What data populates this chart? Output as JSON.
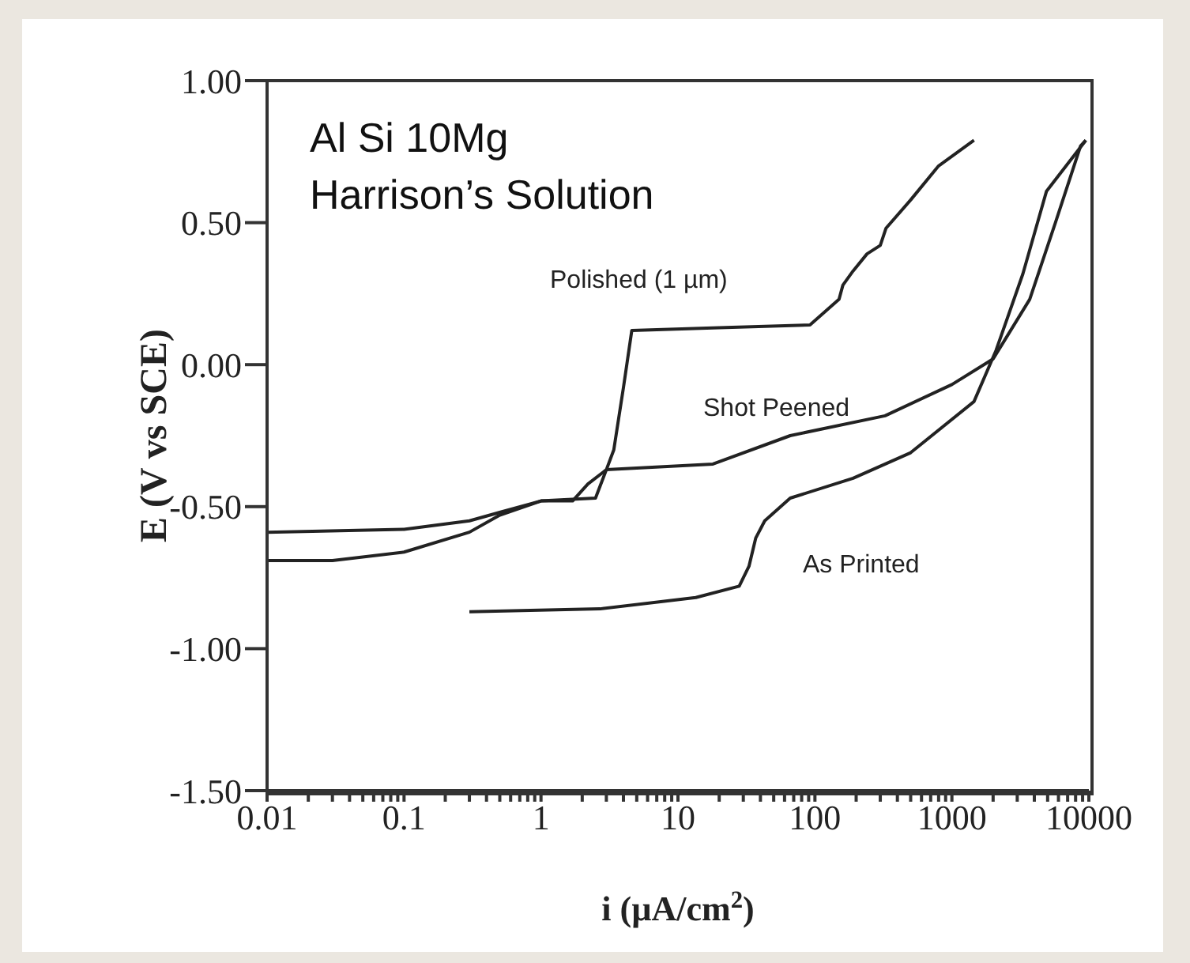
{
  "chart_data": {
    "type": "line",
    "xlabel": "i (µA/cm$^{2}$)",
    "ylabel": "E (V vs SCE)",
    "log": "x",
    "grid": false,
    "legend": false,
    "marker": "none",
    "line_style": "solid",
    "annotations": [
      "Al Si 10Mg",
      "Harrison’s Solution"
    ],
    "xlim": [
      0.01,
      10000
    ],
    "xticks": [
      0.01,
      {
        "value": 0.02,
        "label": null
      },
      {
        "value": 0.03,
        "label": null
      },
      {
        "value": 0.04,
        "label": null
      },
      {
        "value": 0.05,
        "label": null
      },
      {
        "value": 0.06,
        "label": null
      },
      {
        "value": 0.07,
        "label": null
      },
      {
        "value": 0.08,
        "label": null
      },
      {
        "value": 0.09,
        "label": null
      },
      0.1,
      {
        "value": 0.2,
        "label": null
      },
      {
        "value": 0.3,
        "label": null
      },
      {
        "value": 0.4,
        "label": null
      },
      {
        "value": 0.5,
        "label": null
      },
      {
        "value": 0.6,
        "label": null
      },
      {
        "value": 0.7,
        "label": null
      },
      {
        "value": 0.8,
        "label": null
      },
      {
        "value": 0.9,
        "label": null
      },
      1,
      {
        "value": 2,
        "label": null
      },
      {
        "value": 3,
        "label": null
      },
      {
        "value": 4,
        "label": null
      },
      {
        "value": 5,
        "label": null
      },
      {
        "value": 6,
        "label": null
      },
      {
        "value": 7,
        "label": null
      },
      {
        "value": 8,
        "label": null
      },
      {
        "value": 9,
        "label": null
      },
      10,
      {
        "value": 20,
        "label": null
      },
      {
        "value": 30,
        "label": null
      },
      {
        "value": 40,
        "label": null
      },
      {
        "value": 50,
        "label": null
      },
      {
        "value": 60,
        "label": null
      },
      {
        "value": 70,
        "label": null
      },
      {
        "value": 80,
        "label": null
      },
      {
        "value": 90,
        "label": null
      },
      100,
      {
        "value": 200,
        "label": null
      },
      {
        "value": 300,
        "label": null
      },
      {
        "value": 400,
        "label": null
      },
      {
        "value": 500,
        "label": null
      },
      {
        "value": 600,
        "label": null
      },
      {
        "value": 700,
        "label": null
      },
      {
        "value": 800,
        "label": null
      },
      {
        "value": 900,
        "label": null
      },
      1000,
      {
        "value": 2000,
        "label": null
      },
      {
        "value": 3000,
        "label": null
      },
      {
        "value": 4000,
        "label": null
      },
      {
        "value": 5000,
        "label": null
      },
      {
        "value": 6000,
        "label": null
      },
      {
        "value": 7000,
        "label": null
      },
      {
        "value": 8000,
        "label": null
      },
      {
        "value": 9000,
        "label": null
      },
      10000
    ],
    "ylim": [
      -1.5,
      1.0
    ],
    "yticks": [
      {
        "value": -1.5,
        "label": "-1.50"
      },
      {
        "value": -1.0,
        "label": "-1.00"
      },
      {
        "value": -0.5,
        "label": "-0.50"
      },
      {
        "value": 0,
        "label": "0.00"
      },
      {
        "value": 0.5,
        "label": "0.50"
      },
      {
        "value": 1.0,
        "label": "1.00"
      }
    ],
    "series": [
      {
        "name": "Polished (1 µm)",
        "color": "#222222",
        "x": [
          0.01,
          0.03,
          0.1,
          0.3,
          0.5,
          1,
          1.7,
          2.2,
          3,
          3.4,
          4,
          4.6,
          20,
          92,
          150,
          160,
          190,
          240,
          300,
          330,
          500,
          800,
          1450
        ],
        "values": [
          -0.69,
          -0.69,
          -0.66,
          -0.59,
          -0.53,
          -0.48,
          -0.48,
          -0.42,
          -0.37,
          -0.3,
          -0.08,
          0.12,
          0.13,
          0.14,
          0.23,
          0.28,
          0.33,
          0.39,
          0.42,
          0.48,
          0.58,
          0.7,
          0.79
        ]
      },
      {
        "name": "Shot Peened",
        "color": "#222222",
        "x": [
          0.01,
          0.1,
          0.3,
          0.5,
          1,
          2.5,
          3,
          18,
          66,
          325,
          1000,
          2000,
          3700,
          5700,
          8700,
          9500
        ],
        "values": [
          -0.59,
          -0.58,
          -0.55,
          -0.52,
          -0.48,
          -0.47,
          -0.37,
          -0.35,
          -0.25,
          -0.18,
          -0.07,
          0.02,
          0.23,
          0.5,
          0.77,
          0.79
        ]
      },
      {
        "name": "As Printed",
        "color": "#222222",
        "x": [
          0.3,
          2.7,
          13.5,
          28,
          33,
          37,
          43,
          66,
          190,
          500,
          1450,
          2100,
          3300,
          4900,
          9500
        ],
        "values": [
          -0.87,
          -0.86,
          -0.82,
          -0.78,
          -0.71,
          -0.61,
          -0.55,
          -0.47,
          -0.4,
          -0.31,
          -0.13,
          0.05,
          0.32,
          0.61,
          0.79
        ]
      }
    ]
  }
}
